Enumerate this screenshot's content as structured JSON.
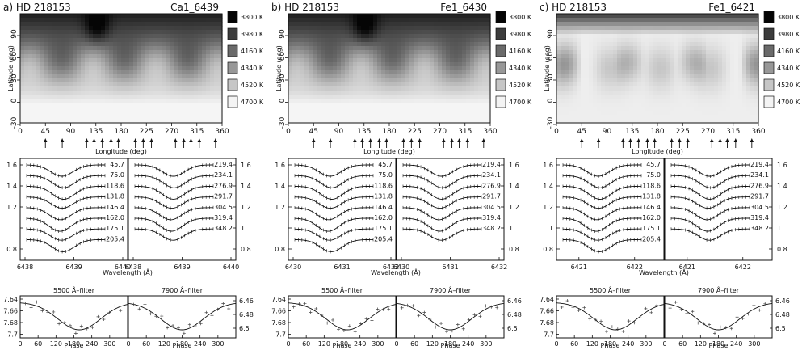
{
  "figure": {
    "panels": [
      {
        "letter": "a)",
        "star": "HD 218153",
        "line": "Ca1_6439",
        "map": {
          "xlabel": "Longitude (deg)",
          "ylabel": "Latitude (deg)",
          "xticks": [
            "0",
            "45",
            "90",
            "135",
            "180",
            "225",
            "270",
            "315",
            "360"
          ],
          "yticks": [
            "90",
            "60",
            "30",
            "0",
            "-30"
          ],
          "legend": [
            "3800 K",
            "3980 K",
            "4160 K",
            "4340 K",
            "4520 K",
            "4700 K"
          ],
          "legend_colors": [
            "#050505",
            "#3c3c3c",
            "#6a6a6a",
            "#989898",
            "#c6c6c6",
            "#f4f4f4"
          ],
          "phase_arrows_deg": [
            45,
            75,
            118.6,
            131.8,
            146.4,
            162.0,
            175.1,
            205.4,
            219.4,
            234.1,
            276.9,
            291.7,
            304.5,
            319.4,
            348.2
          ]
        },
        "profiles": {
          "xlabel": "Wavelength (Å)",
          "left_xticks": [
            "6438",
            "6439",
            "6440"
          ],
          "right_xticks": [
            "6438",
            "6439",
            "6440"
          ],
          "yticks_left": [
            "1.6",
            "1.4",
            "1.2",
            "1",
            "0.8"
          ],
          "yticks_right": [
            "1.6",
            "1.4",
            "1.2",
            "1",
            "0.8"
          ],
          "left_phases": [
            "45.7",
            "75.0",
            "118.6",
            "131.8",
            "146.4",
            "162.0",
            "175.1",
            "205.4"
          ],
          "right_phases": [
            "219.4",
            "234.1",
            "276.9",
            "291.7",
            "304.5",
            "319.4",
            "348.2"
          ]
        },
        "photometry": {
          "xlabel": "Phase",
          "left_title": "5500 Å–filter",
          "right_title": "7900 Å–filter",
          "left_xticks": [
            "0",
            "60",
            "120",
            "180",
            "240",
            "300"
          ],
          "right_xticks": [
            "0",
            "60",
            "120",
            "180",
            "240",
            "300"
          ],
          "left_yticks": [
            "7.64",
            "7.66",
            "7.68",
            "7.7"
          ],
          "right_yticks": [
            "6.46",
            "6.48",
            "6.5"
          ]
        }
      },
      {
        "letter": "b)",
        "star": "HD 218153",
        "line": "Fe1_6430",
        "map": {
          "xlabel": "Longitude (deg)",
          "ylabel": "Latitude (deg)",
          "xticks": [
            "0",
            "45",
            "90",
            "135",
            "180",
            "225",
            "270",
            "315",
            "360"
          ],
          "yticks": [
            "90",
            "60",
            "30",
            "0",
            "-30"
          ],
          "legend": [
            "3800 K",
            "3980 K",
            "4160 K",
            "4340 K",
            "4520 K",
            "4700 K"
          ],
          "legend_colors": [
            "#050505",
            "#3c3c3c",
            "#6a6a6a",
            "#989898",
            "#c6c6c6",
            "#f4f4f4"
          ],
          "phase_arrows_deg": [
            45,
            75,
            118.6,
            131.8,
            146.4,
            162.0,
            175.1,
            205.4,
            219.4,
            234.1,
            276.9,
            291.7,
            304.5,
            319.4,
            348.2
          ]
        },
        "profiles": {
          "xlabel": "Wavelength (Å)",
          "left_xticks": [
            "6430",
            "6431",
            "6432"
          ],
          "right_xticks": [
            "6430",
            "6431",
            "6432"
          ],
          "yticks_left": [
            "1.6",
            "1.4",
            "1.2",
            "1",
            "0.8"
          ],
          "yticks_right": [
            "1.6",
            "1.4",
            "1.2",
            "1",
            "0.8"
          ],
          "left_phases": [
            "45.7",
            "75.0",
            "118.6",
            "131.8",
            "146.4",
            "162.0",
            "175.1",
            "205.4"
          ],
          "right_phases": [
            "219.4",
            "234.1",
            "276.9",
            "291.7",
            "304.5",
            "319.4",
            "348.2"
          ]
        },
        "photometry": {
          "xlabel": "Phase",
          "left_title": "5500 Å–filter",
          "right_title": "7900 Å–filter",
          "left_xticks": [
            "0",
            "60",
            "120",
            "180",
            "240",
            "300"
          ],
          "right_xticks": [
            "0",
            "60",
            "120",
            "180",
            "240",
            "300"
          ],
          "left_yticks": [
            "7.64",
            "7.66",
            "7.68",
            "7.7"
          ],
          "right_yticks": [
            "6.46",
            "6.48",
            "6.5"
          ]
        }
      },
      {
        "letter": "c)",
        "star": "HD 218153",
        "line": "Fe1_6421",
        "map": {
          "xlabel": "Longitude (deg)",
          "ylabel": "Latitude (deg)",
          "xticks": [
            "0",
            "45",
            "90",
            "135",
            "180",
            "225",
            "270",
            "315",
            "360"
          ],
          "yticks": [
            "90",
            "60",
            "30",
            "0",
            "-30"
          ],
          "legend": [
            "3800 K",
            "3980 K",
            "4160 K",
            "4340 K",
            "4520 K",
            "4700 K"
          ],
          "legend_colors": [
            "#050505",
            "#3c3c3c",
            "#6a6a6a",
            "#989898",
            "#c6c6c6",
            "#f4f4f4"
          ],
          "phase_arrows_deg": [
            45,
            75,
            118.6,
            131.8,
            146.4,
            162.0,
            175.1,
            205.4,
            219.4,
            234.1,
            276.9,
            291.7,
            304.5,
            319.4,
            348.2
          ]
        },
        "profiles": {
          "xlabel": "Wavelength (Å)",
          "left_xticks": [
            "6421",
            "6422"
          ],
          "right_xticks": [
            "6421",
            "6422"
          ],
          "yticks_left": [
            "1.6",
            "1.4",
            "1.2",
            "1",
            "0.8"
          ],
          "yticks_right": [
            "1.6",
            "1.4",
            "1.2",
            "1",
            "0.8"
          ],
          "left_phases": [
            "45.7",
            "75.0",
            "118.6",
            "131.8",
            "146.4",
            "162.0",
            "175.1",
            "205.4"
          ],
          "right_phases": [
            "219.4",
            "234.1",
            "276.9",
            "291.7",
            "304.5",
            "319.4",
            "348.2"
          ]
        },
        "photometry": {
          "xlabel": "Phase",
          "left_title": "5500 Å–filter",
          "right_title": "7900 Å–filter",
          "left_xticks": [
            "0",
            "60",
            "120",
            "180",
            "240",
            "300"
          ],
          "right_xticks": [
            "0",
            "60",
            "120",
            "180",
            "240",
            "300"
          ],
          "left_yticks": [
            "7.64",
            "7.66",
            "7.68",
            "7.7"
          ],
          "right_yticks": [
            "6.46",
            "6.48",
            "6.5"
          ]
        }
      }
    ]
  }
}
